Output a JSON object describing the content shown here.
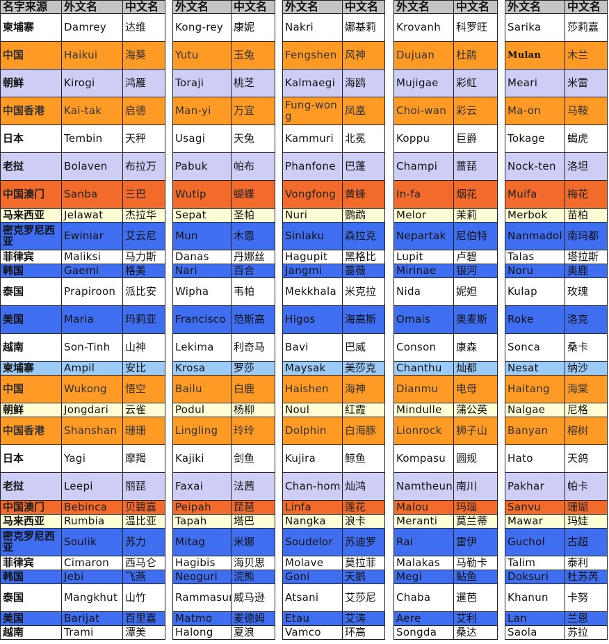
{
  "headers": [
    "名字来源",
    "外文名",
    "中文名",
    "外文名",
    "中文名",
    "外文名",
    "中文名",
    "外文名",
    "中文名",
    "外文名",
    "中文名"
  ],
  "colors": {
    "white": "#ffffff",
    "orange": "#ff9a24",
    "lavender": "#cdcdf6",
    "red_orange": "#f26b2a",
    "cream": "#fefdd6",
    "blue": "#3f6ef0",
    "light_blue": "#9ccbf7",
    "header_gray": "#c4c4c4"
  },
  "rows": [
    {
      "source": "柬埔寨",
      "band": "white",
      "names": [
        [
          "Damrey",
          "达维"
        ],
        [
          "Kong-rey",
          "康妮"
        ],
        [
          "Nakri",
          "娜基莉"
        ],
        [
          "Krovanh",
          "科罗旺"
        ],
        [
          "Sarika",
          "莎莉嘉"
        ]
      ]
    },
    {
      "source": "中国",
      "band": "orange",
      "names": [
        [
          "Haikui",
          "海葵"
        ],
        [
          "Yutu",
          "玉兔"
        ],
        [
          "Fengshen",
          "风神"
        ],
        [
          "Dujuan",
          "杜鹃"
        ],
        [
          "Mulan",
          "木兰"
        ]
      ]
    },
    {
      "source": "朝鲜",
      "band": "lavender",
      "names": [
        [
          "Kirogi",
          "鸿雁"
        ],
        [
          "Toraji",
          "桃芝"
        ],
        [
          "Kalmaegi",
          "海鸥"
        ],
        [
          "Mujigae",
          "彩虹"
        ],
        [
          "Meari",
          "米雷"
        ]
      ]
    },
    {
      "source": "中国香港",
      "band": "orange",
      "names": [
        [
          "Kai-tak",
          "启德"
        ],
        [
          "Man-yi",
          "万宜"
        ],
        [
          "Fung-wong",
          "凤凰"
        ],
        [
          "Choi-wan",
          "彩云"
        ],
        [
          "Ma-on",
          "马鞍"
        ]
      ]
    },
    {
      "source": "日本",
      "band": "white",
      "names": [
        [
          "Tembin",
          "天秤"
        ],
        [
          "Usagi",
          "天兔"
        ],
        [
          "Kammuri",
          "北冕"
        ],
        [
          "Koppu",
          "巨爵"
        ],
        [
          "Tokage",
          "蝎虎"
        ]
      ]
    },
    {
      "source": "老挝",
      "band": "lavender",
      "names": [
        [
          "Bolaven",
          "布拉万"
        ],
        [
          "Pabuk",
          "帕布"
        ],
        [
          "Phanfone",
          "巴蓬"
        ],
        [
          "Champi",
          "蔷琵"
        ],
        [
          "Nock-ten",
          "洛坦"
        ]
      ]
    },
    {
      "source": "中国澳门",
      "band": "red",
      "names": [
        [
          "Sanba",
          "三巴"
        ],
        [
          "Wutip",
          "蝴蝶"
        ],
        [
          "Vongfong",
          "黄蜂"
        ],
        [
          "In-fa",
          "烟花"
        ],
        [
          "Muifa",
          "梅花"
        ]
      ]
    },
    {
      "source": "马来西亚",
      "band": "cream",
      "names": [
        [
          "Jelawat",
          "杰拉华"
        ],
        [
          "Sepat",
          "圣帕"
        ],
        [
          "Nuri",
          "鹦鹉"
        ],
        [
          "Melor",
          "茉莉"
        ],
        [
          "Merbok",
          "苗柏"
        ]
      ]
    },
    {
      "source": "密克罗尼西亚",
      "band": "blue",
      "names": [
        [
          "Ewiniar",
          "艾云尼"
        ],
        [
          "Mun",
          "木恩"
        ],
        [
          "Sinlaku",
          "森拉克"
        ],
        [
          "Nepartak",
          "尼伯特"
        ],
        [
          "Nanmadol",
          "南玛都"
        ]
      ]
    },
    {
      "source": "菲律宾",
      "band": "white",
      "names": [
        [
          "Maliksi",
          "马力斯"
        ],
        [
          "Danas",
          "丹娜丝"
        ],
        [
          "Hagupit",
          "黑格比"
        ],
        [
          "Lupit",
          "卢碧"
        ],
        [
          "Talas",
          "塔拉斯"
        ]
      ]
    },
    {
      "source": "韩国",
      "band": "blue",
      "names": [
        [
          "Gaemi",
          "格美"
        ],
        [
          "Nari",
          "百合"
        ],
        [
          "Jangmi",
          "蔷薇"
        ],
        [
          "Mirinae",
          "银河"
        ],
        [
          "Noru",
          "奥鹿"
        ]
      ]
    },
    {
      "source": "泰国",
      "band": "white",
      "names": [
        [
          "Prapiroon",
          "派比安"
        ],
        [
          "Wipha",
          "韦帕"
        ],
        [
          "Mekkhala",
          "米克拉"
        ],
        [
          "Nida",
          "妮妲"
        ],
        [
          "Kulap",
          "玫瑰"
        ]
      ]
    },
    {
      "source": "美国",
      "band": "blue",
      "names": [
        [
          "Maria",
          "玛莉亚"
        ],
        [
          "Francisco",
          "范斯高"
        ],
        [
          "Higos",
          "海高斯"
        ],
        [
          "Omais",
          "奥麦斯"
        ],
        [
          "Roke",
          "洛克"
        ]
      ]
    },
    {
      "source": "越南",
      "band": "white",
      "names": [
        [
          "Son-Tinh",
          "山神"
        ],
        [
          "Lekima",
          "利奇马"
        ],
        [
          "Bavi",
          "巴威"
        ],
        [
          "Conson",
          "康森"
        ],
        [
          "Sonca",
          "桑卡"
        ]
      ]
    },
    {
      "source": "柬埔寨",
      "band": "light_blue",
      "names": [
        [
          "Ampil",
          "安比"
        ],
        [
          "Krosa",
          "罗莎"
        ],
        [
          "Maysak",
          "美莎克"
        ],
        [
          "Chanthu",
          "灿都"
        ],
        [
          "Nesat",
          "纳沙"
        ]
      ]
    },
    {
      "source": "中国",
      "band": "orange",
      "names": [
        [
          "Wukong",
          "悟空"
        ],
        [
          "Bailu",
          "白鹿"
        ],
        [
          "Haishen",
          "海神"
        ],
        [
          "Dianmu",
          "电母"
        ],
        [
          "Haitang",
          "海棠"
        ]
      ]
    },
    {
      "source": "朝鲜",
      "band": "cream",
      "names": [
        [
          "Jongdari",
          "云雀"
        ],
        [
          "Podul",
          "杨柳"
        ],
        [
          "Noul",
          "红霞"
        ],
        [
          "Mindulle",
          "蒲公英"
        ],
        [
          "Nalgae",
          "尼格"
        ]
      ]
    },
    {
      "source": "中国香港",
      "band": "orange",
      "names": [
        [
          "Shanshan",
          "珊珊"
        ],
        [
          "Lingling",
          "玲玲"
        ],
        [
          "Dolphin",
          "白海豚"
        ],
        [
          "Lionrock",
          "狮子山"
        ],
        [
          "Banyan",
          "榕树"
        ]
      ]
    },
    {
      "source": "日本",
      "band": "white",
      "names": [
        [
          "Yagi",
          "摩羯"
        ],
        [
          "Kajiki",
          "剑鱼"
        ],
        [
          "Kujira",
          "鲸鱼"
        ],
        [
          "Kompasu",
          "圆规"
        ],
        [
          "Hato",
          "天鸽"
        ]
      ]
    },
    {
      "source": "老挝",
      "band": "lavender",
      "names": [
        [
          "Leepi",
          "丽琵"
        ],
        [
          "Faxai",
          "法茜"
        ],
        [
          "Chan-hom",
          "灿鸿"
        ],
        [
          "Namtheun",
          "南川"
        ],
        [
          "Pakhar",
          "帕卡"
        ]
      ]
    },
    {
      "source": "中国澳门",
      "band": "red",
      "names": [
        [
          "Bebinca",
          "贝碧嘉"
        ],
        [
          "Peipah",
          "琵琶"
        ],
        [
          "Linfa",
          "莲花"
        ],
        [
          "Malou",
          "玛瑙"
        ],
        [
          "Sanvu",
          "珊瑚"
        ]
      ]
    },
    {
      "source": "马来西亚",
      "band": "cream",
      "names": [
        [
          "Rumbia",
          "温比亚"
        ],
        [
          "Tapah",
          "塔巴"
        ],
        [
          "Nangka",
          "浪卡"
        ],
        [
          "Meranti",
          "莫兰蒂"
        ],
        [
          "Mawar",
          "玛娃"
        ]
      ]
    },
    {
      "source": "密克罗尼西亚",
      "band": "blue",
      "names": [
        [
          "Soulik",
          "苏力"
        ],
        [
          "Mitag",
          "米娜"
        ],
        [
          "Soudelor",
          "苏迪罗"
        ],
        [
          "Rai",
          "雷伊"
        ],
        [
          "Guchol",
          "古超"
        ]
      ]
    },
    {
      "source": "菲律宾",
      "band": "white",
      "names": [
        [
          "Cimaron",
          "西马仑"
        ],
        [
          "Hagibis",
          "海贝思"
        ],
        [
          "Molave",
          "莫拉菲"
        ],
        [
          "Malakas",
          "马勒卡"
        ],
        [
          "Talim",
          "泰利"
        ]
      ]
    },
    {
      "source": "韩国",
      "band": "blue",
      "names": [
        [
          "Jebi",
          "飞燕"
        ],
        [
          "Neoguri",
          "浣熊"
        ],
        [
          "Goni",
          "天鹅"
        ],
        [
          "Megi",
          "鲇鱼"
        ],
        [
          "Doksuri",
          "杜苏芮"
        ]
      ]
    },
    {
      "source": "泰国",
      "band": "white",
      "names": [
        [
          "Mangkhut",
          "山竹"
        ],
        [
          "Rammasun",
          "威马逊"
        ],
        [
          "Atsani",
          "艾莎尼"
        ],
        [
          "Chaba",
          "暹芭"
        ],
        [
          "Khanun",
          "卡努"
        ]
      ]
    },
    {
      "source": "美国",
      "band": "blue",
      "names": [
        [
          "Barijat",
          "百里嘉"
        ],
        [
          "Matmo",
          "麦德姆"
        ],
        [
          "Etau",
          "艾涛"
        ],
        [
          "Aere",
          "艾利"
        ],
        [
          "Lan",
          "兰恩"
        ]
      ]
    },
    {
      "source": "越南",
      "band": "white",
      "names": [
        [
          "Trami",
          "潭美"
        ],
        [
          "Halong",
          "夏浪"
        ],
        [
          "Vamco",
          "环高"
        ],
        [
          "Songda",
          "桑达"
        ],
        [
          "Saola",
          "苏拉"
        ]
      ]
    }
  ]
}
